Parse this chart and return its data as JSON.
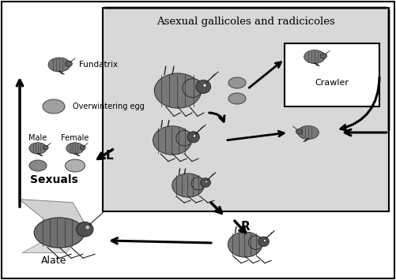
{
  "title": "Asexual gallicoles and radicicoles",
  "bg_color": "#ffffff",
  "inner_box_bg": "#d8d8d8",
  "crawler_box_bg": "#ffffff",
  "crawler_label": "Crawler",
  "labels": {
    "fundatrix": "Fundatrix",
    "overwintering_egg": "Overwintering egg",
    "male": "Male",
    "female": "Female",
    "sexuals": "Sexuals",
    "alate": "Alate",
    "L": "L",
    "R": "R"
  },
  "aphid_color": "#808080",
  "aphid_dark": "#606060",
  "aphid_stripe": "#404040",
  "egg_color": "#a0a0a0",
  "egg_dark": "#787878",
  "wing_color": "#c8c8c8",
  "figsize": [
    5.01,
    3.55
  ],
  "dpi": 100
}
